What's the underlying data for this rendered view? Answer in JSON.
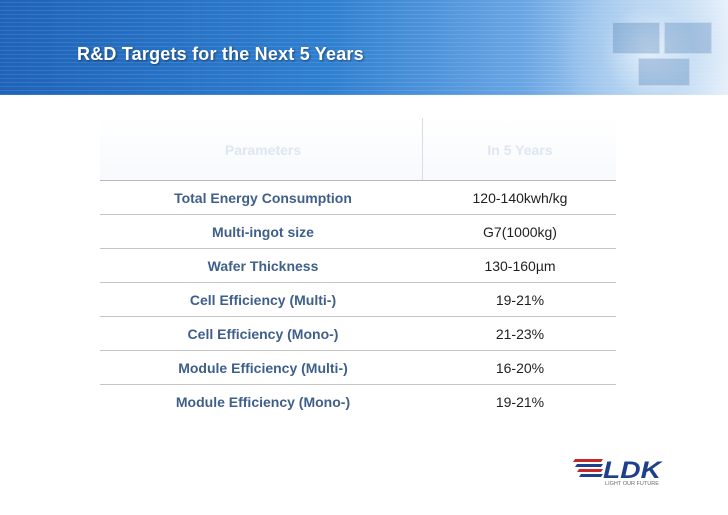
{
  "slide": {
    "title": "R&D Targets for the Next 5 Years"
  },
  "table": {
    "headers": [
      "Parameters",
      "In 5 Years"
    ],
    "rows": [
      {
        "parameter": "Total Energy Consumption",
        "value": "120-140kwh/kg"
      },
      {
        "parameter": "Multi-ingot size",
        "value": "G7(1000kg)"
      },
      {
        "parameter": "Wafer Thickness",
        "value": "130-160µm"
      },
      {
        "parameter": "Cell Efficiency (Multi-)",
        "value": "19-21%"
      },
      {
        "parameter": "Cell Efficiency (Mono-)",
        "value": "21-23%"
      },
      {
        "parameter": "Module Efficiency (Multi-)",
        "value": "16-20%"
      },
      {
        "parameter": "Module Efficiency (Mono-)",
        "value": "19-21%"
      }
    ]
  },
  "logo": {
    "wordmark": "LDK",
    "tagline": "LIGHT OUR FUTURE"
  },
  "colors": {
    "banner_blue": "#1e63b8",
    "parameter_text": "#3f5f8a",
    "header_text": "#dde6f1",
    "logo_red": "#c8262b",
    "logo_blue": "#1d3f8c"
  }
}
